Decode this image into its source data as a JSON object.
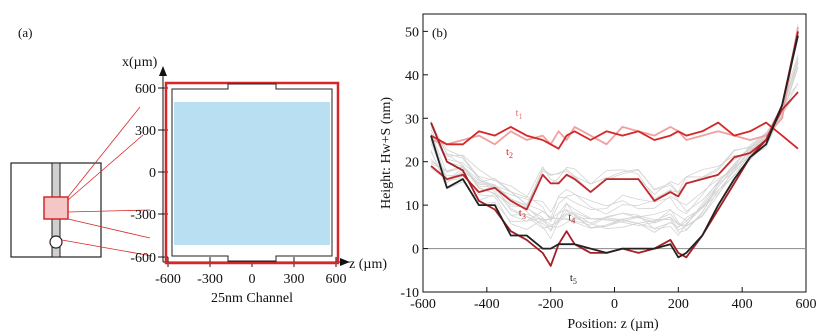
{
  "panel_a": {
    "label": "(a)",
    "x_axis_label": "x(µm)",
    "z_axis_label": "z (µm)",
    "x_ticks": [
      "600",
      "300",
      "0",
      "-300",
      "-600"
    ],
    "z_ticks": [
      "-600",
      "-300",
      "0",
      "300",
      "600"
    ],
    "caption": "25nm Channel",
    "colors": {
      "frame": "#d62728",
      "fill": "#b8e0f2",
      "lines": "#d62728"
    }
  },
  "chart_data": [
    {
      "panel": "(b)",
      "type": "line",
      "xlabel": "Position: z (µm)",
      "ylabel": "Height: Hw+S (nm)",
      "xlim": [
        -600,
        600
      ],
      "ylim": [
        -10,
        54
      ],
      "xticks": [
        -600,
        -400,
        -200,
        0,
        200,
        400,
        600
      ],
      "yticks": [
        -10,
        0,
        10,
        20,
        30,
        40,
        50
      ],
      "reference_line_y": 0,
      "x": [
        -575,
        -525,
        -475,
        -425,
        -375,
        -325,
        -275,
        -225,
        -200,
        -175,
        -150,
        -125,
        -75,
        -25,
        25,
        75,
        125,
        175,
        200,
        225,
        275,
        325,
        375,
        425,
        475,
        525,
        575
      ],
      "series": [
        {
          "name": "t1",
          "color": "#f0a0a0",
          "values": [
            25,
            24,
            25,
            26,
            24,
            27,
            25,
            26,
            24,
            27,
            25,
            28,
            26,
            24,
            28,
            27,
            26,
            28,
            27,
            25,
            26,
            27,
            26,
            25,
            26,
            30,
            51
          ]
        },
        {
          "name": "t2",
          "color": "#d62728",
          "values": [
            26,
            24,
            24,
            27,
            26,
            28,
            26,
            25,
            24,
            23,
            26,
            27,
            25,
            27,
            26,
            27,
            25,
            26,
            27,
            26,
            27,
            29,
            26,
            27,
            29,
            26,
            23
          ]
        },
        {
          "name": "t3",
          "color": "#c0282c",
          "values": [
            19,
            16,
            17,
            13,
            14,
            11,
            9,
            17,
            15,
            15,
            17,
            16,
            13,
            16,
            16,
            16,
            11,
            13,
            12,
            15,
            16,
            17,
            21,
            22,
            25,
            32,
            36
          ]
        },
        {
          "name": "t4",
          "color": "#a51e24",
          "values": [
            29,
            20,
            18,
            11,
            9,
            4,
            2,
            -1,
            -4,
            1,
            4,
            1,
            -1,
            -1,
            0,
            -1,
            0,
            2,
            -1,
            -2,
            3,
            9,
            15,
            21,
            25,
            33,
            50
          ]
        },
        {
          "name": "t5",
          "color": "#222222",
          "values": [
            26,
            14,
            16,
            10,
            10,
            3,
            3,
            0,
            0,
            1,
            1,
            1,
            0,
            -1,
            0,
            0,
            0,
            1,
            -2,
            -1,
            3,
            10,
            16,
            21,
            24,
            33,
            49
          ]
        }
      ],
      "labels": [
        {
          "text": "t",
          "sub": "1",
          "x": -310,
          "y": 30.5,
          "color": "#e87878"
        },
        {
          "text": "t",
          "sub": "2",
          "x": -340,
          "y": 21.5,
          "color": "#d62728"
        },
        {
          "text": "t",
          "sub": "3",
          "x": -300,
          "y": 7.5,
          "color": "#c0282c"
        },
        {
          "text": "t",
          "sub": "4",
          "x": -145,
          "y": 6.5,
          "color": "#a51e24"
        },
        {
          "text": "t",
          "sub": "5",
          "x": -140,
          "y": -7.5,
          "color": "#222222"
        }
      ]
    }
  ]
}
